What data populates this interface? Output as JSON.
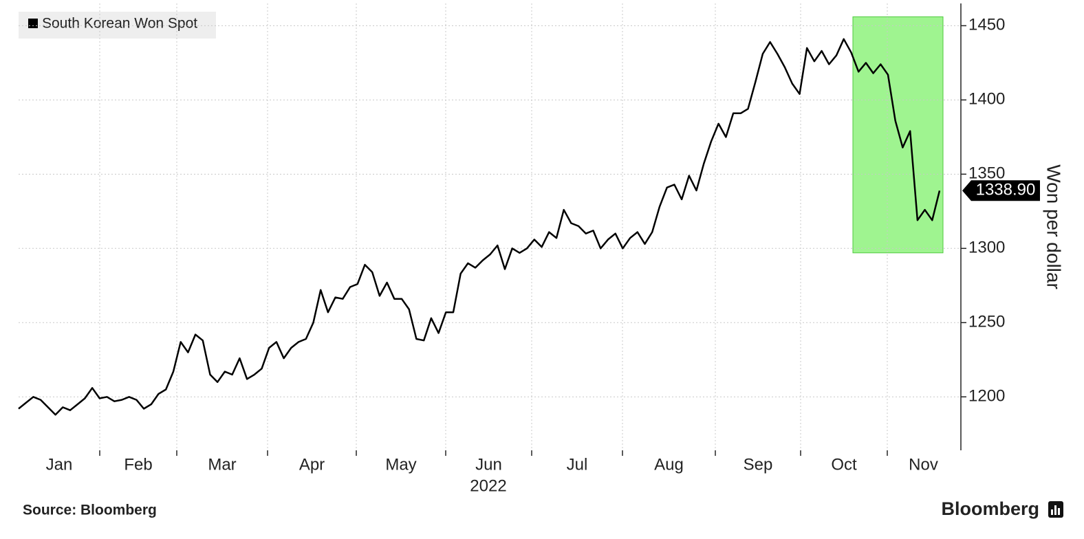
{
  "chart_data": {
    "type": "line",
    "legend": "South Korean Won Spot",
    "series": [
      {
        "name": "South Korean Won Spot",
        "color": "#000000",
        "values": [
          1192,
          1196,
          1200,
          1198,
          1193,
          1188,
          1193,
          1191,
          1195,
          1199,
          1206,
          1199,
          1200,
          1197,
          1198,
          1200,
          1198,
          1192,
          1195,
          1202,
          1205,
          1217,
          1237,
          1230,
          1242,
          1238,
          1215,
          1210,
          1217,
          1215,
          1226,
          1212,
          1215,
          1219,
          1233,
          1237,
          1226,
          1233,
          1237,
          1239,
          1250,
          1272,
          1257,
          1267,
          1266,
          1274,
          1276,
          1289,
          1284,
          1268,
          1277,
          1266,
          1266,
          1259,
          1239,
          1238,
          1253,
          1243,
          1257,
          1257,
          1283,
          1290,
          1287,
          1292,
          1296,
          1302,
          1286,
          1300,
          1297,
          1300,
          1306,
          1301,
          1311,
          1307,
          1326,
          1317,
          1315,
          1310,
          1312,
          1300,
          1306,
          1310,
          1300,
          1307,
          1311,
          1303,
          1311,
          1328,
          1341,
          1343,
          1333,
          1349,
          1339,
          1357,
          1372,
          1384,
          1375,
          1391,
          1391,
          1394,
          1412,
          1431,
          1439,
          1431,
          1422,
          1411,
          1404,
          1435,
          1426,
          1433,
          1424,
          1430,
          1441,
          1432,
          1419,
          1425,
          1418,
          1424,
          1417,
          1386,
          1368,
          1379,
          1319,
          1326,
          1319,
          1338.9
        ]
      }
    ],
    "last_value": {
      "value": 1338.9,
      "label": "1338.90"
    },
    "x_labels": [
      "Jan",
      "Feb",
      "Mar",
      "Apr",
      "May",
      "Jun",
      "Jul",
      "Aug",
      "Sep",
      "Oct",
      "Nov"
    ],
    "xlabel": "2022",
    "ylabel": "Won per dollar",
    "ylim": [
      1164,
      1465
    ],
    "yticks": [
      1200,
      1250,
      1300,
      1350,
      1400,
      1450
    ],
    "grid": true,
    "highlight": {
      "color": "#8ef27c",
      "ylim": [
        1297,
        1456
      ]
    },
    "source": "Source: Bloomberg",
    "brand": "Bloomberg"
  }
}
